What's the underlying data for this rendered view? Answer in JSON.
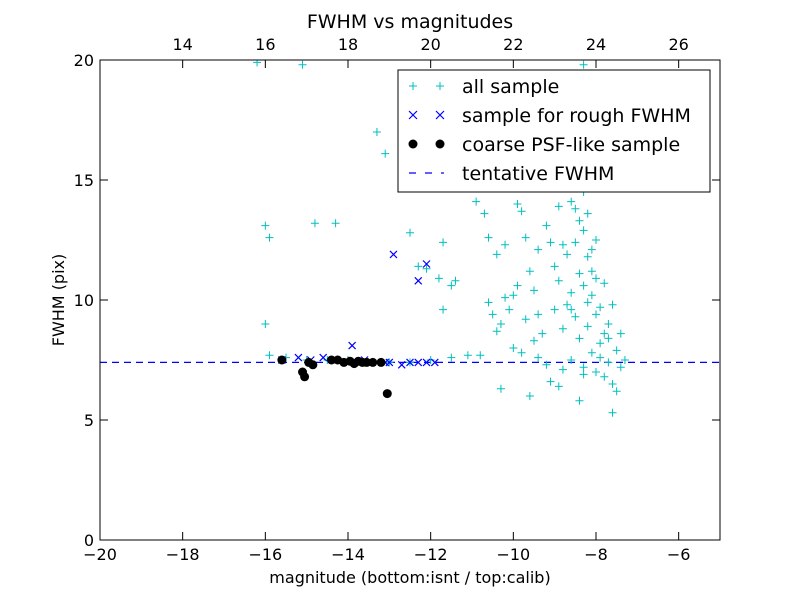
{
  "chart_data": {
    "type": "scatter",
    "title": "FWHM vs magnitudes",
    "xlabel": "magnitude (bottom:isnt / top:calib)",
    "ylabel": "FWHM (pix)",
    "xlim": [
      -20,
      -5
    ],
    "ylim": [
      0,
      20
    ],
    "x_ticks": [
      -20,
      -18,
      -16,
      -14,
      -12,
      -10,
      -8,
      -6
    ],
    "x_tick_labels": [
      "−20",
      "−18",
      "−16",
      "−14",
      "−12",
      "−10",
      "−8",
      "−6"
    ],
    "y_ticks": [
      0,
      5,
      10,
      15,
      20
    ],
    "y_tick_labels": [
      "0",
      "5",
      "10",
      "15",
      "20"
    ],
    "top_axis": {
      "ticks": [
        14,
        16,
        18,
        20,
        22,
        24,
        26
      ],
      "tick_labels": [
        "14",
        "16",
        "18",
        "20",
        "22",
        "24",
        "26"
      ],
      "offset": 32
    },
    "grid": false,
    "legend_position": "top-right",
    "colors": {
      "all_sample": "#00bfbf",
      "rough_sample": "#0000ff",
      "psf_sample": "#000000",
      "tentative_line": "#0000ff"
    },
    "series": [
      {
        "name": "all sample",
        "marker": "plus",
        "points": [
          [
            -16.2,
            19.9
          ],
          [
            -15.1,
            19.8
          ],
          [
            -13.3,
            17.0
          ],
          [
            -13.1,
            16.1
          ],
          [
            -16.0,
            13.1
          ],
          [
            -15.9,
            12.6
          ],
          [
            -14.8,
            13.2
          ],
          [
            -14.3,
            13.2
          ],
          [
            -16.0,
            9.0
          ],
          [
            -15.9,
            7.7
          ],
          [
            -12.5,
            12.8
          ],
          [
            -12.3,
            11.4
          ],
          [
            -12.1,
            11.3
          ],
          [
            -11.8,
            10.9
          ],
          [
            -11.7,
            9.6
          ],
          [
            -11.7,
            12.4
          ],
          [
            -11.5,
            10.6
          ],
          [
            -11.4,
            10.8
          ],
          [
            -11.2,
            15.6
          ],
          [
            -11.0,
            15.2
          ],
          [
            -10.8,
            15.0
          ],
          [
            -10.9,
            14.1
          ],
          [
            -10.7,
            13.6
          ],
          [
            -10.6,
            12.6
          ],
          [
            -10.4,
            11.9
          ],
          [
            -10.2,
            12.3
          ],
          [
            -10.5,
            9.4
          ],
          [
            -10.3,
            9.0
          ],
          [
            -10.2,
            10.1
          ],
          [
            -10.0,
            10.2
          ],
          [
            -10.0,
            8.0
          ],
          [
            -9.9,
            14.0
          ],
          [
            -9.8,
            13.7
          ],
          [
            -9.7,
            12.6
          ],
          [
            -9.6,
            11.2
          ],
          [
            -9.5,
            10.4
          ],
          [
            -9.4,
            9.4
          ],
          [
            -9.3,
            8.6
          ],
          [
            -9.2,
            13.1
          ],
          [
            -9.1,
            12.4
          ],
          [
            -9.0,
            11.4
          ],
          [
            -9.0,
            9.6
          ],
          [
            -8.9,
            10.8
          ],
          [
            -8.9,
            13.9
          ],
          [
            -8.8,
            12.3
          ],
          [
            -8.8,
            8.8
          ],
          [
            -8.7,
            9.8
          ],
          [
            -8.7,
            11.9
          ],
          [
            -8.6,
            14.1
          ],
          [
            -8.6,
            10.3
          ],
          [
            -8.6,
            7.5
          ],
          [
            -8.5,
            15.2
          ],
          [
            -8.5,
            12.4
          ],
          [
            -8.5,
            9.3
          ],
          [
            -8.4,
            13.3
          ],
          [
            -8.4,
            11.1
          ],
          [
            -8.4,
            8.4
          ],
          [
            -8.3,
            10.6
          ],
          [
            -8.3,
            12.9
          ],
          [
            -8.3,
            7.2
          ],
          [
            -8.2,
            9.9
          ],
          [
            -8.2,
            11.8
          ],
          [
            -8.2,
            8.9
          ],
          [
            -8.1,
            10.2
          ],
          [
            -8.1,
            7.8
          ],
          [
            -8.1,
            12.1
          ],
          [
            -8.0,
            9.4
          ],
          [
            -8.0,
            7.0
          ],
          [
            -8.0,
            10.9
          ],
          [
            -7.9,
            8.2
          ],
          [
            -7.9,
            9.7
          ],
          [
            -7.8,
            6.8
          ],
          [
            -7.8,
            8.6
          ],
          [
            -7.7,
            7.4
          ],
          [
            -7.7,
            9.0
          ],
          [
            -7.6,
            6.5
          ],
          [
            -7.5,
            7.9
          ],
          [
            -7.5,
            6.2
          ],
          [
            -7.4,
            7.2
          ],
          [
            -7.6,
            5.3
          ],
          [
            -8.4,
            5.8
          ],
          [
            -8.9,
            6.4
          ],
          [
            -9.1,
            6.6
          ],
          [
            -9.6,
            6.0
          ],
          [
            -10.3,
            6.3
          ],
          [
            -8.6,
            15.9
          ],
          [
            -8.7,
            17.6
          ],
          [
            -8.8,
            18.3
          ],
          [
            -8.5,
            19.2
          ],
          [
            -8.3,
            19.8
          ],
          [
            -8.9,
            17.0
          ],
          [
            -8.4,
            16.4
          ],
          [
            -9.0,
            15.6
          ],
          [
            -8.7,
            14.7
          ],
          [
            -8.5,
            13.8
          ],
          [
            -8.2,
            13.6
          ],
          [
            -8.3,
            14.5
          ],
          [
            -8.8,
            14.9
          ],
          [
            -8.1,
            11.2
          ],
          [
            -8.0,
            12.5
          ],
          [
            -9.4,
            12.1
          ],
          [
            -9.5,
            8.3
          ],
          [
            -9.7,
            9.2
          ],
          [
            -9.8,
            7.8
          ],
          [
            -9.9,
            10.6
          ],
          [
            -10.1,
            9.6
          ],
          [
            -10.4,
            8.7
          ],
          [
            -10.6,
            9.9
          ],
          [
            -10.8,
            7.7
          ],
          [
            -11.1,
            7.7
          ],
          [
            -11.5,
            7.6
          ],
          [
            -12.0,
            7.5
          ],
          [
            -12.5,
            7.4
          ],
          [
            -13.0,
            7.4
          ],
          [
            -13.5,
            7.4
          ],
          [
            -14.0,
            7.5
          ],
          [
            -14.5,
            7.5
          ],
          [
            -15.0,
            7.5
          ],
          [
            -15.5,
            7.6
          ],
          [
            -9.2,
            7.3
          ],
          [
            -9.4,
            7.6
          ],
          [
            -8.8,
            7.1
          ],
          [
            -8.3,
            6.9
          ],
          [
            -7.9,
            7.6
          ],
          [
            -7.7,
            8.4
          ],
          [
            -7.3,
            7.5
          ],
          [
            -7.4,
            8.6
          ],
          [
            -7.6,
            9.8
          ],
          [
            -7.8,
            10.7
          ],
          [
            -8.6,
            9.6
          ]
        ]
      },
      {
        "name": "sample for rough FWHM",
        "marker": "x",
        "points": [
          [
            -15.6,
            7.5
          ],
          [
            -15.2,
            7.6
          ],
          [
            -14.9,
            7.5
          ],
          [
            -14.6,
            7.6
          ],
          [
            -14.3,
            7.5
          ],
          [
            -13.9,
            8.1
          ],
          [
            -13.6,
            7.5
          ],
          [
            -13.3,
            7.4
          ],
          [
            -13.1,
            7.4
          ],
          [
            -12.9,
            11.9
          ],
          [
            -12.3,
            10.8
          ],
          [
            -12.1,
            11.5
          ],
          [
            -12.7,
            7.3
          ],
          [
            -12.5,
            7.4
          ],
          [
            -12.3,
            7.4
          ],
          [
            -12.1,
            7.4
          ],
          [
            -11.9,
            7.4
          ],
          [
            -13.0,
            7.4
          ]
        ]
      },
      {
        "name": "coarse PSF-like sample",
        "marker": "dot",
        "points": [
          [
            -15.6,
            7.5
          ],
          [
            -15.1,
            7.0
          ],
          [
            -15.05,
            6.8
          ],
          [
            -14.95,
            7.4
          ],
          [
            -14.85,
            7.3
          ],
          [
            -14.4,
            7.5
          ],
          [
            -14.25,
            7.5
          ],
          [
            -14.1,
            7.4
          ],
          [
            -13.95,
            7.45
          ],
          [
            -13.85,
            7.35
          ],
          [
            -13.75,
            7.45
          ],
          [
            -13.65,
            7.4
          ],
          [
            -13.55,
            7.4
          ],
          [
            -13.4,
            7.4
          ],
          [
            -13.2,
            7.4
          ],
          [
            -13.05,
            6.1
          ]
        ]
      },
      {
        "name": "tentative FWHM",
        "type": "hline",
        "y": 7.4
      }
    ]
  }
}
